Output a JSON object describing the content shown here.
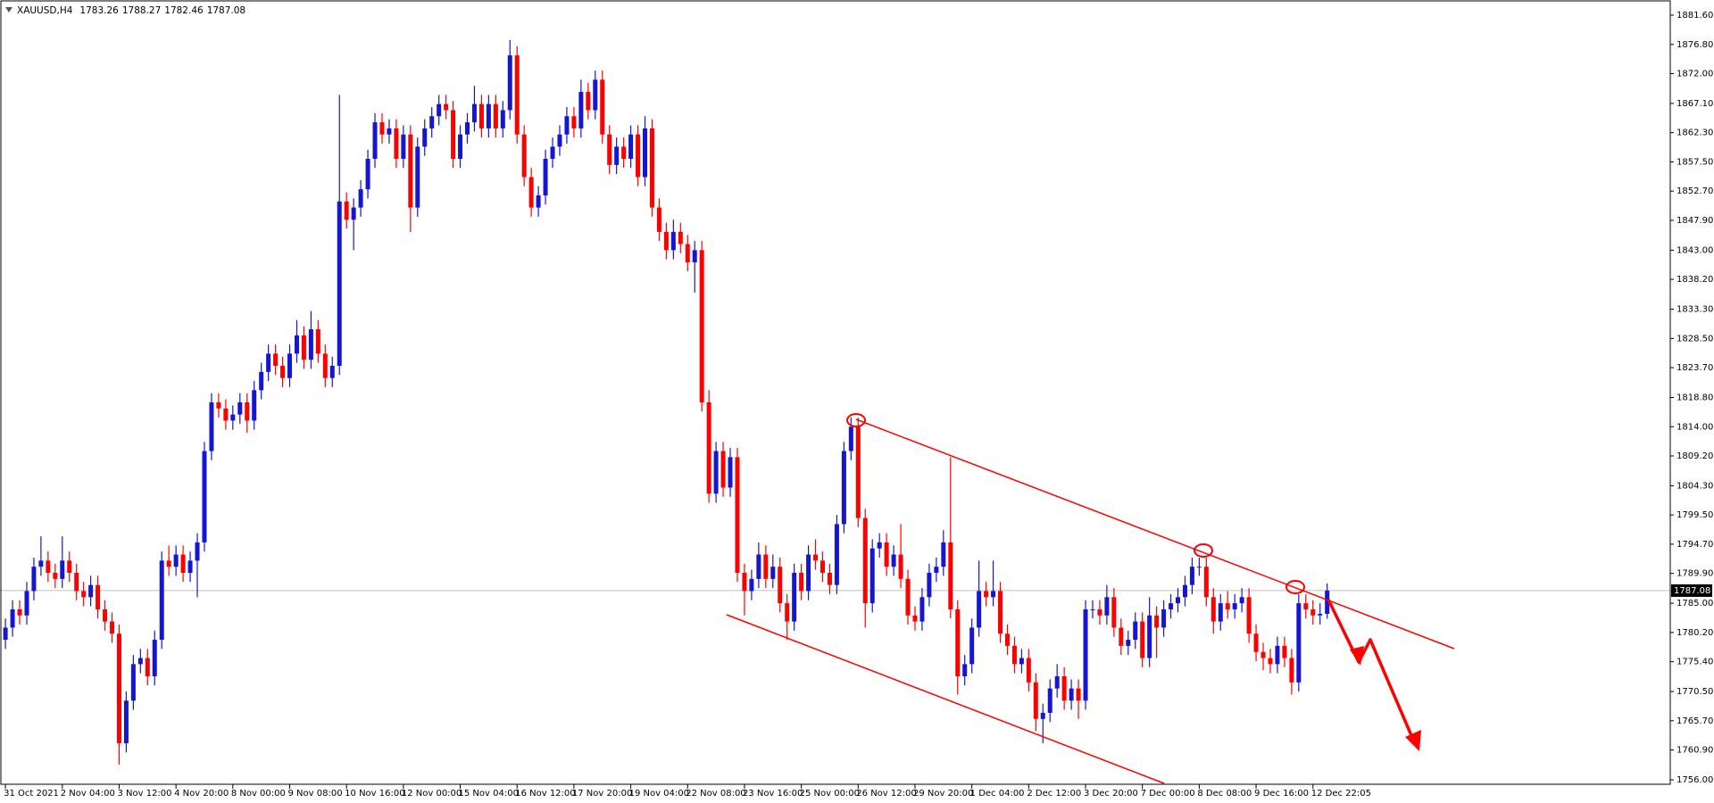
{
  "chart_data": {
    "type": "candlestick",
    "symbol": "XAUUSD,H4",
    "header_values": [
      1783.26,
      1788.27,
      1782.46,
      1787.08
    ],
    "up_color": "#1515d4",
    "down_color": "#ff0000",
    "current_price": 1787.08,
    "ylim": [
      1756,
      1881.6
    ],
    "yticks": [
      {
        "value": 1881.6,
        "label": "1881.60"
      },
      {
        "value": 1876.8,
        "label": "1876.80"
      },
      {
        "value": 1872,
        "label": "1872.00"
      },
      {
        "value": 1867.1,
        "label": "1867.10"
      },
      {
        "value": 1862.3,
        "label": "1862.30"
      },
      {
        "value": 1857.5,
        "label": "1857.50"
      },
      {
        "value": 1852.7,
        "label": "1852.70"
      },
      {
        "value": 1847.9,
        "label": "1847.90"
      },
      {
        "value": 1843,
        "label": "1843.00"
      },
      {
        "value": 1838.2,
        "label": "1838.20"
      },
      {
        "value": 1833.3,
        "label": "1833.30"
      },
      {
        "value": 1828.5,
        "label": "1828.50"
      },
      {
        "value": 1823.7,
        "label": "1823.70"
      },
      {
        "value": 1818.8,
        "label": "1818.80"
      },
      {
        "value": 1814,
        "label": "1814.00"
      },
      {
        "value": 1809.2,
        "label": "1809.20"
      },
      {
        "value": 1804.3,
        "label": "1804.30"
      },
      {
        "value": 1799.5,
        "label": "1799.50"
      },
      {
        "value": 1794.7,
        "label": "1794.70"
      },
      {
        "value": 1789.9,
        "label": "1789.90"
      },
      {
        "value": 1785,
        "label": "1785.00"
      },
      {
        "value": 1780.2,
        "label": "1780.20"
      },
      {
        "value": 1775.4,
        "label": "1775.40"
      },
      {
        "value": 1770.5,
        "label": "1770.50"
      },
      {
        "value": 1765.7,
        "label": "1765.70"
      },
      {
        "value": 1760.9,
        "label": "1760.90"
      },
      {
        "value": 1756,
        "label": "1756.00"
      }
    ],
    "categories": [
      "31 Oct 2021",
      null,
      null,
      null,
      null,
      null,
      null,
      null,
      "2 Nov 04:00",
      null,
      null,
      null,
      null,
      null,
      null,
      null,
      "3 Nov 12:00",
      null,
      null,
      null,
      null,
      null,
      null,
      null,
      "4 Nov 20:00",
      null,
      null,
      null,
      null,
      null,
      null,
      null,
      "8 Nov 00:00",
      null,
      null,
      null,
      null,
      null,
      null,
      null,
      "9 Nov 08:00",
      null,
      null,
      null,
      null,
      null,
      null,
      null,
      "10 Nov 16:00",
      null,
      null,
      null,
      null,
      null,
      null,
      null,
      "12 Nov 00:00",
      null,
      null,
      null,
      null,
      null,
      null,
      null,
      "15 Nov 04:00",
      null,
      null,
      null,
      null,
      null,
      null,
      null,
      "16 Nov 12:00",
      null,
      null,
      null,
      null,
      null,
      null,
      null,
      "17 Nov 20:00",
      null,
      null,
      null,
      null,
      null,
      null,
      null,
      "19 Nov 04:00",
      null,
      null,
      null,
      null,
      null,
      null,
      null,
      "22 Nov 08:00",
      null,
      null,
      null,
      null,
      null,
      null,
      null,
      "23 Nov 16:00",
      null,
      null,
      null,
      null,
      null,
      null,
      null,
      "25 Nov 00:00",
      null,
      null,
      null,
      null,
      null,
      null,
      null,
      "26 Nov 12:00",
      null,
      null,
      null,
      null,
      null,
      null,
      null,
      "29 Nov 20:00",
      null,
      null,
      null,
      null,
      null,
      null,
      null,
      "1 Dec 04:00",
      null,
      null,
      null,
      null,
      null,
      null,
      null,
      "2 Dec 12:00",
      null,
      null,
      null,
      null,
      null,
      null,
      null,
      "3 Dec 20:00",
      null,
      null,
      null,
      null,
      null,
      null,
      null,
      "7 Dec 00:00",
      null,
      null,
      null,
      null,
      null,
      null,
      null,
      "8 Dec 08:00",
      null,
      null,
      null,
      null,
      null,
      null,
      null,
      "9 Dec 16:00",
      null,
      null,
      null,
      null,
      null,
      null,
      null,
      "12 Dec 22:05",
      null,
      null
    ],
    "ohlc": [
      [
        1779,
        1782.5,
        1777.5,
        1781
      ],
      [
        1781,
        1785.5,
        1779.5,
        1784
      ],
      [
        1784,
        1785.5,
        1781.5,
        1783
      ],
      [
        1783,
        1788.5,
        1781.5,
        1787
      ],
      [
        1787,
        1792.5,
        1785.5,
        1791
      ],
      [
        1791,
        1796,
        1789.5,
        1792
      ],
      [
        1792,
        1793.5,
        1788.5,
        1790
      ],
      [
        1790,
        1791.5,
        1787.5,
        1789
      ],
      [
        1789,
        1796,
        1787.5,
        1792
      ],
      [
        1792,
        1793.5,
        1788.5,
        1790
      ],
      [
        1790,
        1791.5,
        1785.5,
        1787
      ],
      [
        1787,
        1788.5,
        1784.5,
        1786
      ],
      [
        1786,
        1789.5,
        1784.5,
        1788
      ],
      [
        1788,
        1789.5,
        1782.5,
        1784
      ],
      [
        1784,
        1785.5,
        1780.5,
        1782
      ],
      [
        1782,
        1783.5,
        1778.5,
        1780
      ],
      [
        1780,
        1781.5,
        1758.5,
        1762
      ],
      [
        1762,
        1770.5,
        1760.5,
        1769
      ],
      [
        1769,
        1776.5,
        1767.5,
        1775
      ],
      [
        1775,
        1777.5,
        1773.5,
        1776
      ],
      [
        1776,
        1777.5,
        1771.5,
        1773
      ],
      [
        1773,
        1780.5,
        1771.5,
        1779
      ],
      [
        1779,
        1793.5,
        1777.5,
        1792
      ],
      [
        1792,
        1794.5,
        1789.5,
        1791
      ],
      [
        1791,
        1794.5,
        1789.5,
        1793
      ],
      [
        1793,
        1794.5,
        1788.5,
        1790
      ],
      [
        1790,
        1793.5,
        1788.5,
        1792
      ],
      [
        1792,
        1796.5,
        1786,
        1795
      ],
      [
        1795,
        1811.5,
        1793.5,
        1810
      ],
      [
        1810,
        1819.5,
        1808.5,
        1818
      ],
      [
        1818,
        1819.5,
        1815.5,
        1817
      ],
      [
        1817,
        1818.5,
        1813.5,
        1815
      ],
      [
        1815,
        1817.5,
        1813.5,
        1816
      ],
      [
        1816,
        1819.5,
        1814.5,
        1818
      ],
      [
        1818,
        1819.5,
        1813,
        1815
      ],
      [
        1815,
        1821.5,
        1813.5,
        1820
      ],
      [
        1820,
        1824.5,
        1818.5,
        1823
      ],
      [
        1823,
        1827.5,
        1821.5,
        1826
      ],
      [
        1826,
        1827.5,
        1822.5,
        1824
      ],
      [
        1824,
        1825.5,
        1820.5,
        1822
      ],
      [
        1822,
        1827.5,
        1820.5,
        1826
      ],
      [
        1826,
        1831.5,
        1824.5,
        1829
      ],
      [
        1829,
        1830.5,
        1823.5,
        1825
      ],
      [
        1825,
        1833,
        1823.5,
        1830
      ],
      [
        1830,
        1831.5,
        1824.5,
        1826
      ],
      [
        1826,
        1827.5,
        1820.5,
        1822
      ],
      [
        1822,
        1825.5,
        1820.5,
        1824
      ],
      [
        1824,
        1868.5,
        1822.5,
        1851
      ],
      [
        1851,
        1852.5,
        1846.5,
        1848
      ],
      [
        1848,
        1851.5,
        1843,
        1850
      ],
      [
        1850,
        1854.5,
        1848.5,
        1853
      ],
      [
        1853,
        1859.5,
        1851.5,
        1858
      ],
      [
        1858,
        1865.5,
        1856.5,
        1864
      ],
      [
        1864,
        1865.5,
        1860.5,
        1862
      ],
      [
        1862,
        1864.5,
        1860.5,
        1863
      ],
      [
        1863,
        1864.5,
        1856.5,
        1858
      ],
      [
        1858,
        1863.5,
        1856.5,
        1862
      ],
      [
        1862,
        1863.5,
        1846,
        1850
      ],
      [
        1850,
        1861.5,
        1848.5,
        1860
      ],
      [
        1860,
        1864.5,
        1858.5,
        1863
      ],
      [
        1863,
        1866.5,
        1861.5,
        1865
      ],
      [
        1865,
        1868.5,
        1863.5,
        1867
      ],
      [
        1867,
        1868.5,
        1864.5,
        1866
      ],
      [
        1866,
        1867.5,
        1856.5,
        1858
      ],
      [
        1858,
        1863.5,
        1856.5,
        1862
      ],
      [
        1862,
        1865.5,
        1860.5,
        1864
      ],
      [
        1864,
        1870,
        1862.5,
        1867
      ],
      [
        1867,
        1868.5,
        1861.5,
        1863
      ],
      [
        1863,
        1868.5,
        1861.5,
        1867
      ],
      [
        1867,
        1868.5,
        1861.5,
        1863
      ],
      [
        1863,
        1867.5,
        1861.5,
        1866
      ],
      [
        1866,
        1877.5,
        1864.5,
        1875
      ],
      [
        1875,
        1876.5,
        1860.5,
        1862
      ],
      [
        1862,
        1863.5,
        1853.5,
        1855
      ],
      [
        1855,
        1856.5,
        1848.5,
        1850
      ],
      [
        1850,
        1853.5,
        1848.5,
        1852
      ],
      [
        1852,
        1859.5,
        1850.5,
        1858
      ],
      [
        1858,
        1861.5,
        1856.5,
        1860
      ],
      [
        1860,
        1863.5,
        1858.5,
        1862
      ],
      [
        1862,
        1866.5,
        1860.5,
        1865
      ],
      [
        1865,
        1866.5,
        1861.5,
        1863
      ],
      [
        1863,
        1871,
        1861.5,
        1869
      ],
      [
        1869,
        1870.5,
        1864.5,
        1866
      ],
      [
        1866,
        1872.5,
        1864.5,
        1871
      ],
      [
        1871,
        1872.5,
        1860.5,
        1862
      ],
      [
        1862,
        1863.5,
        1855.5,
        1857
      ],
      [
        1857,
        1861.5,
        1855.5,
        1860
      ],
      [
        1860,
        1861.5,
        1856.5,
        1858
      ],
      [
        1858,
        1863.5,
        1856.5,
        1862
      ],
      [
        1862,
        1863.5,
        1853.5,
        1855
      ],
      [
        1855,
        1865,
        1853.5,
        1863
      ],
      [
        1863,
        1864.5,
        1848.5,
        1850
      ],
      [
        1850,
        1851.5,
        1844.5,
        1846
      ],
      [
        1846,
        1847.5,
        1841.5,
        1843
      ],
      [
        1843,
        1848,
        1841.5,
        1846
      ],
      [
        1846,
        1847.5,
        1842.5,
        1844
      ],
      [
        1844,
        1845.5,
        1839.5,
        1841
      ],
      [
        1841,
        1844.5,
        1836,
        1843
      ],
      [
        1843,
        1844.5,
        1816.5,
        1818
      ],
      [
        1818,
        1820,
        1801.5,
        1803
      ],
      [
        1803,
        1811.5,
        1801.5,
        1810
      ],
      [
        1810,
        1811.5,
        1802.5,
        1804
      ],
      [
        1804,
        1810.5,
        1802.5,
        1809
      ],
      [
        1809,
        1810.5,
        1788.5,
        1790
      ],
      [
        1790,
        1791.5,
        1783,
        1787
      ],
      [
        1787,
        1790.5,
        1785.5,
        1789
      ],
      [
        1789,
        1795,
        1787.5,
        1793
      ],
      [
        1793,
        1794.5,
        1787.5,
        1789
      ],
      [
        1789,
        1793,
        1787.5,
        1791
      ],
      [
        1791,
        1792.5,
        1783.5,
        1785
      ],
      [
        1785,
        1786.5,
        1779,
        1782
      ],
      [
        1782,
        1791.5,
        1780.5,
        1790
      ],
      [
        1790,
        1791.5,
        1785.5,
        1787
      ],
      [
        1787,
        1794.5,
        1785.5,
        1793
      ],
      [
        1793,
        1795.5,
        1790.5,
        1792
      ],
      [
        1792,
        1793.5,
        1788.5,
        1790
      ],
      [
        1790,
        1791.5,
        1786.5,
        1788
      ],
      [
        1788,
        1799.5,
        1786.5,
        1798
      ],
      [
        1798,
        1811.5,
        1796.5,
        1810
      ],
      [
        1810,
        1815.5,
        1808.5,
        1814
      ],
      [
        1814,
        1815.5,
        1797.5,
        1799
      ],
      [
        1799,
        1800.5,
        1781,
        1785
      ],
      [
        1785,
        1795.5,
        1783.5,
        1794
      ],
      [
        1794,
        1796.5,
        1792.5,
        1795
      ],
      [
        1795,
        1796.5,
        1789.5,
        1791
      ],
      [
        1791,
        1794.5,
        1789.5,
        1793
      ],
      [
        1793,
        1798,
        1787.5,
        1789
      ],
      [
        1789,
        1790.5,
        1781.5,
        1783
      ],
      [
        1783,
        1784.5,
        1780.5,
        1782
      ],
      [
        1782,
        1787.5,
        1780.5,
        1786
      ],
      [
        1786,
        1791.5,
        1784.5,
        1790
      ],
      [
        1790,
        1792.5,
        1788.5,
        1791
      ],
      [
        1791,
        1797,
        1789.5,
        1795
      ],
      [
        1795,
        1809,
        1782.5,
        1784
      ],
      [
        1784,
        1785.5,
        1770,
        1773
      ],
      [
        1773,
        1776.5,
        1771.5,
        1775
      ],
      [
        1775,
        1782.5,
        1773.5,
        1781
      ],
      [
        1781,
        1792,
        1779.5,
        1787
      ],
      [
        1787,
        1788.5,
        1784.5,
        1786
      ],
      [
        1786,
        1792,
        1784.5,
        1787
      ],
      [
        1787,
        1788.5,
        1778.5,
        1780
      ],
      [
        1780,
        1781.5,
        1776.5,
        1778
      ],
      [
        1778,
        1779.5,
        1773.5,
        1775
      ],
      [
        1775,
        1777.5,
        1773.5,
        1776
      ],
      [
        1776,
        1777.5,
        1770.5,
        1772
      ],
      [
        1772,
        1773.5,
        1764,
        1766
      ],
      [
        1766,
        1768.5,
        1762,
        1767
      ],
      [
        1767,
        1772.5,
        1765.5,
        1771
      ],
      [
        1771,
        1775,
        1769.5,
        1773
      ],
      [
        1773,
        1774.5,
        1767.5,
        1769
      ],
      [
        1769,
        1772.5,
        1767.5,
        1771
      ],
      [
        1771,
        1772.5,
        1766,
        1769
      ],
      [
        1769,
        1785.5,
        1767.5,
        1784
      ],
      [
        1784,
        1785.5,
        1782.5,
        1784
      ],
      [
        1784,
        1785.5,
        1781.5,
        1783
      ],
      [
        1783,
        1788,
        1781.5,
        1786
      ],
      [
        1786,
        1787.5,
        1779.5,
        1781
      ],
      [
        1781,
        1782.5,
        1776.5,
        1778
      ],
      [
        1778,
        1780.5,
        1776.5,
        1779
      ],
      [
        1779,
        1783.5,
        1777.5,
        1782
      ],
      [
        1782,
        1783.5,
        1774.5,
        1776
      ],
      [
        1776,
        1786,
        1774.5,
        1783
      ],
      [
        1783,
        1784.5,
        1776,
        1781
      ],
      [
        1781,
        1785.5,
        1779.5,
        1784
      ],
      [
        1784,
        1786.5,
        1782.5,
        1785
      ],
      [
        1785,
        1787.5,
        1783.5,
        1786
      ],
      [
        1786,
        1789.5,
        1784.5,
        1788
      ],
      [
        1788,
        1792.5,
        1786.5,
        1791
      ],
      [
        1791,
        1792.5,
        1789.5,
        1791
      ],
      [
        1791,
        1792.5,
        1784.5,
        1786
      ],
      [
        1786,
        1787.5,
        1780,
        1782
      ],
      [
        1782,
        1786.5,
        1780.5,
        1785
      ],
      [
        1785,
        1787,
        1782.5,
        1784
      ],
      [
        1784,
        1786.5,
        1782.5,
        1785
      ],
      [
        1785,
        1787.5,
        1783.5,
        1786
      ],
      [
        1786,
        1787.5,
        1778.5,
        1780
      ],
      [
        1780,
        1781.5,
        1775.5,
        1777
      ],
      [
        1777,
        1778.5,
        1774,
        1776
      ],
      [
        1776,
        1777.5,
        1773.5,
        1775
      ],
      [
        1775,
        1779.5,
        1773.5,
        1778
      ],
      [
        1778,
        1779.5,
        1774.5,
        1776
      ],
      [
        1776,
        1777.5,
        1770,
        1772
      ],
      [
        1772,
        1786.5,
        1770.5,
        1785
      ],
      [
        1785,
        1786.5,
        1782.5,
        1784
      ],
      [
        1784,
        1785.5,
        1781.5,
        1783
      ],
      [
        1783,
        1785,
        1781.5,
        1783.26
      ],
      [
        1783.26,
        1788.27,
        1782.46,
        1787.08
      ]
    ]
  }
}
